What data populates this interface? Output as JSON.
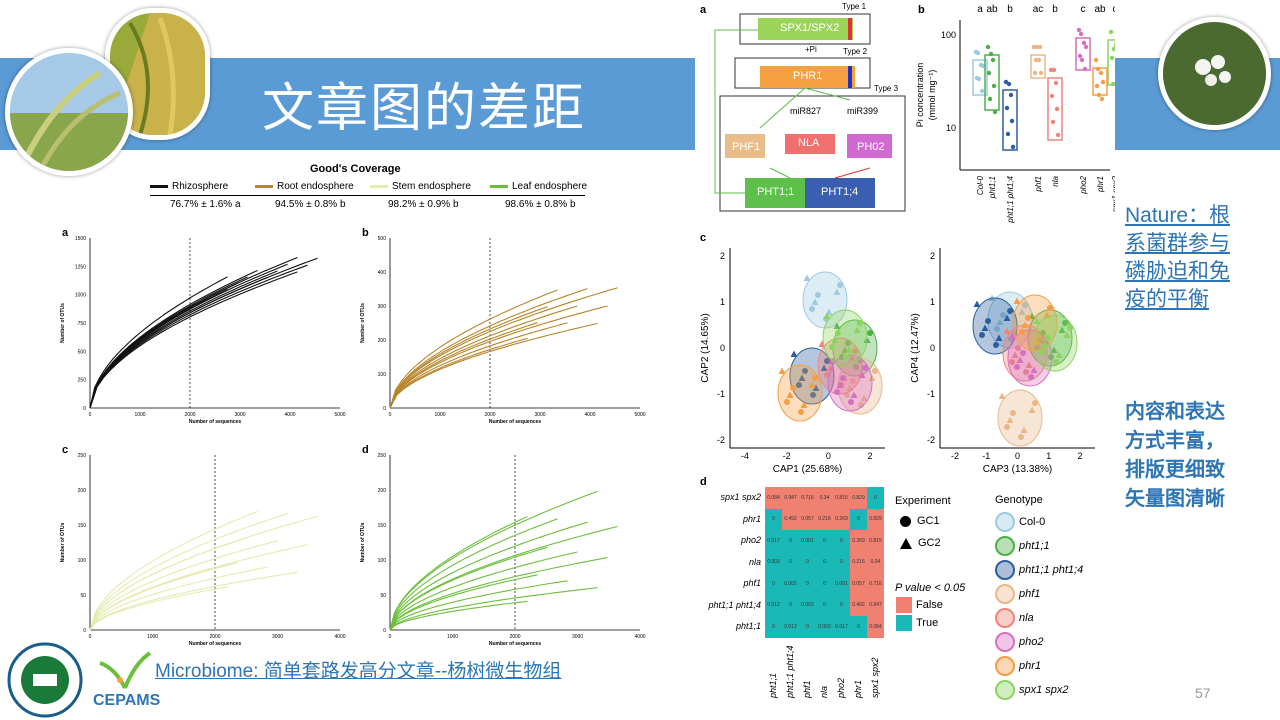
{
  "slide": {
    "title": "文章图的差距",
    "page_number": "57",
    "link_text": "Microbiome: 简单套路发高分文章--杨树微生物组",
    "logo_text": "CEPAMS",
    "right_heading": [
      "Nature：根",
      "系菌群参与",
      "磷胁迫和免",
      "疫的平衡"
    ],
    "right_note": [
      "内容和表达",
      "方式丰富，",
      "排版更细致",
      "矢量图清晰"
    ]
  },
  "left_figure": {
    "coverage_title": "Good's Coverage",
    "legend": [
      {
        "label": "Rhizosphere",
        "color": "#111111",
        "value": "76.7% ± 1.6% a"
      },
      {
        "label": "Root endosphere",
        "color": "#b8862b",
        "value": "94.5% ± 0.8% b"
      },
      {
        "label": "Stem endosphere",
        "color": "#e4ecb0",
        "value": "98.2% ± 0.9% b"
      },
      {
        "label": "Leaf endosphere",
        "color": "#6cbf3c",
        "value": "98.6% ± 0.8% b"
      }
    ],
    "panels": [
      {
        "label": "a",
        "ylabel": "Number of OTUs",
        "xlabel": "Number of sequences",
        "yticks": [
          "0",
          "250",
          "500",
          "750",
          "1000",
          "1250",
          "1500"
        ],
        "xticks": [
          "0",
          "1000",
          "2000",
          "3000",
          "4000",
          "5000"
        ]
      },
      {
        "label": "b",
        "ylabel": "Number of OTUs",
        "xlabel": "Number of sequences",
        "yticks": [
          "0",
          "100",
          "200",
          "300",
          "400",
          "500"
        ],
        "xticks": [
          "0",
          "1000",
          "2000",
          "3000",
          "4000",
          "5000"
        ]
      },
      {
        "label": "c",
        "ylabel": "Number of OTUs",
        "xlabel": "Number of sequences",
        "yticks": [
          "0",
          "50",
          "100",
          "150",
          "200",
          "250"
        ],
        "xticks": [
          "0",
          "1000",
          "2000",
          "3000",
          "4000"
        ]
      },
      {
        "label": "d",
        "ylabel": "Number of OTUs",
        "xlabel": "Number of sequences",
        "yticks": [
          "0",
          "50",
          "100",
          "150",
          "200",
          "250"
        ],
        "xticks": [
          "0",
          "1000",
          "2000",
          "3000",
          "4000"
        ]
      }
    ]
  },
  "diagram": {
    "label": "a",
    "type1": "Type 1",
    "type2": "Type 2",
    "type3": "Type 3",
    "spx": "SPX1/SPX2",
    "pi": "+Pi",
    "phr1": "PHR1",
    "mir827": "miR827",
    "mir399": "miR399",
    "phf1": "PHF1",
    "nla": "NLA",
    "pho2": "PH02",
    "pht11": "PHT1;1",
    "pht14": "PHT1;4"
  },
  "boxplot": {
    "label": "b",
    "ylabel": "Pi concentration",
    "yunit": "(mmol mg⁻¹)",
    "yticks": [
      "100",
      "10"
    ],
    "letters": [
      "a",
      "ab",
      "b",
      "ac",
      "b",
      "c",
      "ab",
      "c"
    ],
    "genotypes": [
      "Col-0",
      "pht1;1",
      "pht1;1 pht1;4",
      "phf1",
      "nla",
      "pho2",
      "phr1",
      "spx1 spx2"
    ]
  },
  "cap": {
    "label": "c",
    "left": {
      "xlabel": "CAP1 (25.68%)",
      "ylabel": "CAP2 (14.65%)",
      "xticks": [
        "-4",
        "-2",
        "0",
        "2"
      ],
      "yticks": [
        "2",
        "1",
        "0",
        "-1",
        "-2"
      ]
    },
    "right": {
      "xlabel": "CAP3 (13.38%)",
      "ylabel": "CAP4 (12.47%)",
      "xticks": [
        "-2",
        "-1",
        "0",
        "1",
        "2"
      ],
      "yticks": [
        "2",
        "1",
        "0",
        "-1",
        "-2"
      ]
    }
  },
  "heatmap": {
    "label": "d",
    "rows": [
      "spx1 spx2",
      "phr1",
      "pho2",
      "nla",
      "phf1",
      "pht1;1 pht1;4",
      "pht1;1"
    ],
    "cols": [
      "pht1;1",
      "pht1;1 pht1;4",
      "phf1",
      "nla",
      "pho2",
      "phr1",
      "spx1 spx2"
    ],
    "values": [
      [
        "0.084",
        "0.947",
        "0.716",
        "0.34",
        "0.815",
        "0.829",
        "0"
      ],
      [
        "0",
        "0.492",
        "0.057",
        "0.216",
        "0.269",
        "0",
        "0.829"
      ],
      [
        "0.017",
        "0",
        "0.001",
        "0",
        "0",
        "0.269",
        "0.815"
      ],
      [
        "0.003",
        "0",
        "0",
        "0",
        "0",
        "0.216",
        "0.34"
      ],
      [
        "0",
        "0.002",
        "0",
        "0",
        "0.001",
        "0.057",
        "0.716"
      ],
      [
        "0.012",
        "0",
        "0.002",
        "0",
        "0",
        "0.492",
        "0.947"
      ],
      [
        "0",
        "0.012",
        "0",
        "0.003",
        "0.017",
        "0",
        "0.084"
      ]
    ],
    "false_color": "#f08070",
    "true_color": "#1bb8b8",
    "experiment_title": "Experiment",
    "gc1": "GC1",
    "gc2": "GC2",
    "pvalue_title": "P value < 0.05",
    "false_label": "False",
    "true_label": "True",
    "genotype_title": "Genotype",
    "genotype_colors": [
      "#9ecae1",
      "#4daf4a",
      "#2c5fa0",
      "#e8b88a",
      "#f0847a",
      "#d66fc0",
      "#f59e42",
      "#8cd460"
    ]
  }
}
